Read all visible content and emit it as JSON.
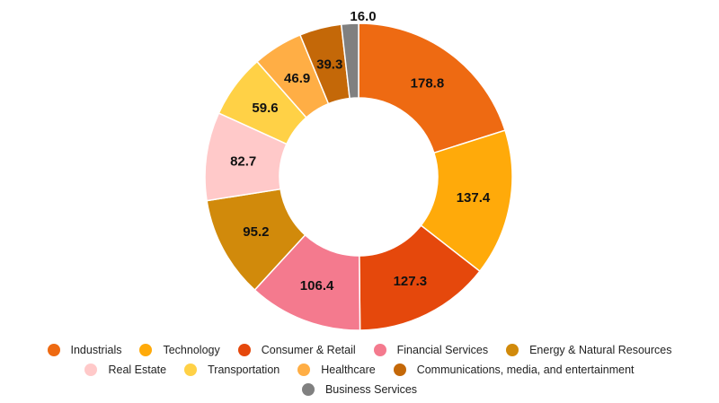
{
  "chart_data": {
    "type": "pie",
    "subtype": "donut",
    "title": "",
    "categories": [
      "Industrials",
      "Technology",
      "Consumer & Retail",
      "Financial Services",
      "Energy & Natural Resources",
      "Real Estate",
      "Transportation",
      "Healthcare",
      "Communications, media, and entertainment",
      "Business Services"
    ],
    "values": [
      178.8,
      137.4,
      127.3,
      106.4,
      95.2,
      82.7,
      59.6,
      46.9,
      39.3,
      16.0
    ],
    "labels": [
      "178.8",
      "137.4",
      "127.3",
      "106.4",
      "95.2",
      "82.7",
      "59.6",
      "46.9",
      "39.3",
      "16.0"
    ],
    "colors": [
      "#EE6A12",
      "#FFAA0A",
      "#E5480C",
      "#F47A8E",
      "#D18A0B",
      "#FFC9C9",
      "#FFD146",
      "#FFAE45",
      "#C46808",
      "#808080"
    ],
    "legend_position": "bottom"
  }
}
